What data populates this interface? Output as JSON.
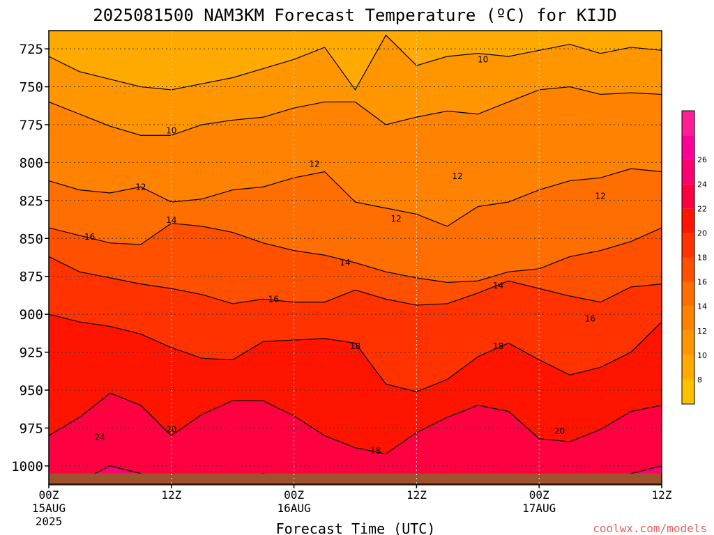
{
  "chart_data": {
    "type": "heatmap",
    "title": "2025081500 NAM3KM Forecast Temperature (ºC) for KIJD",
    "xlabel": "Forecast Time (UTC)",
    "ylabel": "",
    "credit": "coolwx.com/models",
    "x_range_hours": [
      0,
      60
    ],
    "y_range": [
      1012,
      713
    ],
    "y_scale": "pressure (reversed)",
    "x_ticks": [
      {
        "hour": 0,
        "label": "00Z",
        "date": "15AUG",
        "year": "2025"
      },
      {
        "hour": 12,
        "label": "12Z",
        "date": "",
        "year": ""
      },
      {
        "hour": 24,
        "label": "00Z",
        "date": "16AUG",
        "year": ""
      },
      {
        "hour": 36,
        "label": "12Z",
        "date": "",
        "year": ""
      },
      {
        "hour": 48,
        "label": "00Z",
        "date": "17AUG",
        "year": ""
      },
      {
        "hour": 60,
        "label": "12Z",
        "date": "",
        "year": ""
      }
    ],
    "y_ticks": [
      725,
      750,
      775,
      800,
      825,
      850,
      875,
      900,
      925,
      950,
      975,
      1000
    ],
    "grid": true,
    "colorbar": {
      "levels": [
        7,
        9,
        11,
        13,
        15,
        17,
        19,
        21,
        23,
        25,
        27
      ],
      "colors": [
        "#ffc000",
        "#ffaa00",
        "#ff9600",
        "#ff8200",
        "#ff6e00",
        "#ff5000",
        "#ff3200",
        "#ff1400",
        "#ff0040",
        "#ff0070",
        "#ff0096",
        "#ff1e96"
      ],
      "tick_labels": [
        "8",
        "10",
        "12",
        "14",
        "16",
        "18",
        "20",
        "22",
        "24",
        "26"
      ]
    },
    "isotherm_labels": [
      {
        "text": "10",
        "hour": 42.5,
        "p": 732
      },
      {
        "text": "10",
        "hour": 12,
        "p": 779
      },
      {
        "text": "12",
        "hour": 9,
        "p": 816
      },
      {
        "text": "12",
        "hour": 26,
        "p": 801
      },
      {
        "text": "12",
        "hour": 34,
        "p": 837
      },
      {
        "text": "12",
        "hour": 40,
        "p": 809
      },
      {
        "text": "12",
        "hour": 54,
        "p": 822
      },
      {
        "text": "14",
        "hour": 12,
        "p": 838
      },
      {
        "text": "14",
        "hour": 29,
        "p": 866
      },
      {
        "text": "14",
        "hour": 44,
        "p": 881
      },
      {
        "text": "16",
        "hour": 4,
        "p": 849
      },
      {
        "text": "16",
        "hour": 22,
        "p": 890
      },
      {
        "text": "16",
        "hour": 53,
        "p": 903
      },
      {
        "text": "18",
        "hour": 30,
        "p": 921
      },
      {
        "text": "18",
        "hour": 44,
        "p": 921
      },
      {
        "text": "18",
        "hour": 32,
        "p": 990
      },
      {
        "text": "20",
        "hour": 12,
        "p": 976
      },
      {
        "text": "20",
        "hour": 50,
        "p": 977
      },
      {
        "text": "24",
        "hour": 5,
        "p": 981
      }
    ],
    "profiles": [
      {
        "hour": 0,
        "p": [
          1010,
          980,
          900,
          862,
          843,
          812,
          760,
          730
        ]
      },
      {
        "hour": 3,
        "p": [
          1010,
          968,
          905,
          872,
          848,
          818,
          768,
          740
        ]
      },
      {
        "hour": 6,
        "p": [
          1000,
          952,
          908,
          876,
          853,
          820,
          776,
          745
        ]
      },
      {
        "hour": 9,
        "p": [
          1005,
          960,
          913,
          880,
          854,
          816,
          782,
          750
        ]
      },
      {
        "hour": 12,
        "p": [
          1012,
          980,
          922,
          883,
          840,
          826,
          782,
          752
        ]
      },
      {
        "hour": 15,
        "p": [
          1008,
          966,
          929,
          887,
          842,
          824,
          775,
          748
        ]
      },
      {
        "hour": 18,
        "p": [
          1008,
          957,
          930,
          893,
          846,
          818,
          772,
          744
        ]
      },
      {
        "hour": 21,
        "p": [
          1005,
          957,
          918,
          890,
          853,
          816,
          770,
          738
        ]
      },
      {
        "hour": 24,
        "p": [
          1009,
          967,
          917,
          892,
          858,
          810,
          764,
          732
        ]
      },
      {
        "hour": 27,
        "p": [
          1012,
          980,
          916,
          892,
          861,
          806,
          760,
          724
        ]
      },
      {
        "hour": 30,
        "p": [
          1012,
          988,
          919,
          884,
          866,
          826,
          760,
          752
        ]
      },
      {
        "hour": 33,
        "p": [
          1012,
          992,
          946,
          890,
          872,
          830,
          775,
          716
        ]
      },
      {
        "hour": 36,
        "p": [
          1012,
          978,
          951,
          894,
          876,
          834,
          770,
          736
        ]
      },
      {
        "hour": 39,
        "p": [
          1012,
          968,
          943,
          893,
          879,
          842,
          766,
          730
        ]
      },
      {
        "hour": 42,
        "p": [
          1010,
          960,
          928,
          886,
          878,
          829,
          768,
          728
        ]
      },
      {
        "hour": 45,
        "p": [
          1010,
          964,
          919,
          878,
          872,
          826,
          760,
          730
        ]
      },
      {
        "hour": 48,
        "p": [
          1012,
          982,
          930,
          883,
          870,
          818,
          752,
          726
        ]
      },
      {
        "hour": 51,
        "p": [
          1012,
          984,
          940,
          888,
          862,
          812,
          750,
          722
        ]
      },
      {
        "hour": 54,
        "p": [
          1012,
          976,
          935,
          892,
          858,
          810,
          755,
          728
        ]
      },
      {
        "hour": 57,
        "p": [
          1005,
          964,
          925,
          882,
          852,
          804,
          754,
          724
        ]
      },
      {
        "hour": 60,
        "p": [
          1000,
          960,
          905,
          880,
          843,
          806,
          755,
          726
        ]
      }
    ],
    "profile_isotherms": [
      24,
      22,
      20,
      18,
      16,
      14,
      12,
      10
    ],
    "surface_pressure": 1004
  }
}
